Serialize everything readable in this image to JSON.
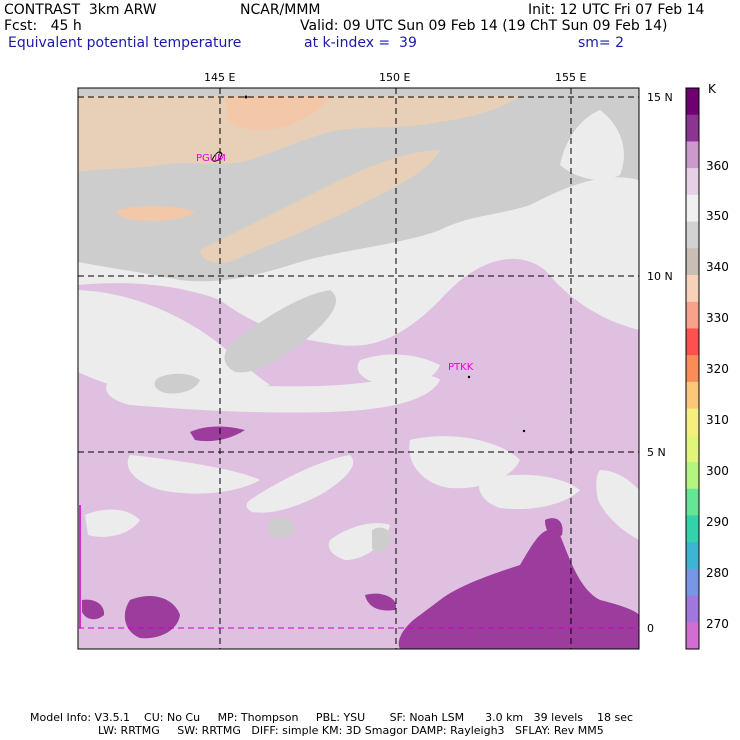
{
  "header": {
    "model": "CONTRAST  3km ARW",
    "center": "NCAR/MMM",
    "init": "Init: 12 UTC Fri 07 Feb 14",
    "fcst": "Fcst:   45 h",
    "valid": "Valid: 09 UTC Sun 09 Feb 14 (19 ChT Sun 09 Feb 14)",
    "field": "Equivalent potential temperature",
    "level": "at k-index =  39",
    "smooth": "sm= 2"
  },
  "axes": {
    "lon_labels": [
      "145 E",
      "150 E",
      "155 E"
    ],
    "lat_labels": [
      "15 N",
      "10 N",
      "5 N",
      "0"
    ]
  },
  "stations": [
    {
      "id": "PGUM",
      "label": "PGUM"
    },
    {
      "id": "PTKK",
      "label": "PTKK"
    }
  ],
  "colorbar": {
    "unit": "K",
    "labels": [
      "360",
      "350",
      "340",
      "330",
      "320",
      "310",
      "300",
      "290",
      "280",
      "270"
    ],
    "colors": [
      "#6e0070",
      "#8a3690",
      "#cc99cc",
      "#e6d0e6",
      "#f0f0f0",
      "#d2d2d2",
      "#c8beb4",
      "#f5d2b9",
      "#f6a28c",
      "#ff5050",
      "#fa8c5a",
      "#fac878",
      "#f5f07d",
      "#e1f578",
      "#b4f582",
      "#64e696",
      "#32d2aa",
      "#3cb4d2",
      "#7896e6",
      "#a078dc",
      "#d26ed2"
    ],
    "colors_note": "top to bottom swatches"
  },
  "footer": {
    "line1": "Model Info: V3.5.1    CU: No Cu     MP: Thompson     PBL: YSU       SF: Noah LSM      3.0 km   39 levels    18 sec",
    "line2": "LW: RRTMG     SW: RRTMG   DIFF: simple KM: 3D Smagor DAMP: Rayleigh3   SFLAY: Rev MM5"
  },
  "colors": {
    "gray": "#cdcdcd",
    "light": "#ececec",
    "lilac": "#e0c0e0",
    "purple": "#9c3c9c",
    "tan": "#e8cfb8",
    "peach": "#f2c8a8"
  }
}
